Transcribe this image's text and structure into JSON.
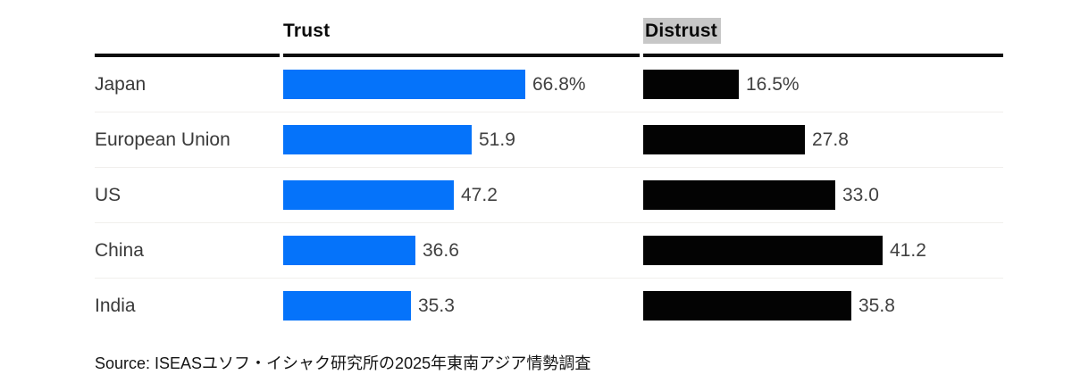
{
  "chart_data": {
    "type": "bar",
    "orientation": "horizontal",
    "categories": [
      "Japan",
      "European Union",
      "US",
      "China",
      "India"
    ],
    "series": [
      {
        "name": "Trust",
        "values": [
          66.8,
          51.9,
          47.2,
          36.6,
          35.3
        ],
        "color": "#0573fa"
      },
      {
        "name": "Distrust",
        "values": [
          16.5,
          27.8,
          33.0,
          41.2,
          35.8
        ],
        "color": "#030303"
      }
    ],
    "value_label_format": "first row includes % sign, others plain",
    "legend_position": "column headers above bars",
    "grid": false,
    "source": "Source: ISEASユソフ・イシャク研究所の2025年東南アジア情勢調査"
  },
  "header": {
    "trust": "Trust",
    "distrust": "Distrust"
  },
  "rows": [
    {
      "country": "Japan",
      "trust": 66.8,
      "trust_label": "66.8%",
      "distrust": 16.5,
      "distrust_label": "16.5%"
    },
    {
      "country": "European Union",
      "trust": 51.9,
      "trust_label": "51.9",
      "distrust": 27.8,
      "distrust_label": "27.8"
    },
    {
      "country": "US",
      "trust": 47.2,
      "trust_label": "47.2",
      "distrust": 33.0,
      "distrust_label": "33.0"
    },
    {
      "country": "China",
      "trust": 36.6,
      "trust_label": "36.6",
      "distrust": 41.2,
      "distrust_label": "41.2"
    },
    {
      "country": "India",
      "trust": 35.3,
      "trust_label": "35.3",
      "distrust": 35.8,
      "distrust_label": "35.8"
    }
  ],
  "source_text": "Source: ISEASユソフ・イシャク研究所の2025年東南アジア情勢調査",
  "colors": {
    "trust_bar": "#0573fa",
    "distrust_bar": "#030303",
    "distrust_header_highlight": "#c7c7c7",
    "header_rule": "#0d0d0d",
    "row_separator": "#f1efec"
  }
}
